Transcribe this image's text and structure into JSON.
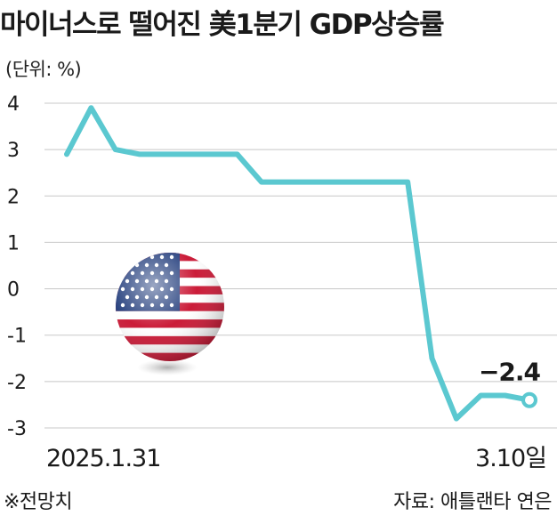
{
  "header": {
    "title": "마이너스로 떨어진 美1분기 GDP상승률",
    "unit_label": "(단위: %)"
  },
  "footer": {
    "note": "※전망치",
    "source": "자료: 애틀랜타 연은"
  },
  "colors": {
    "line": "#5bc8d0",
    "grid": "#c8c8c8",
    "text": "#1a1a1a"
  },
  "decorations": {
    "flag_icon": "us-flag-sphere-icon"
  },
  "chart_data": {
    "type": "line",
    "title": "마이너스로 떨어진 美1분기 GDP상승률",
    "ylabel": "(단위: %)",
    "ylim": [
      -3,
      4
    ],
    "yticks": [
      4,
      3,
      2,
      1,
      0,
      -1,
      -2,
      -3
    ],
    "y_tick_labels": [
      "4",
      "3",
      "2",
      "1",
      "0",
      "-1",
      "-2",
      "-3"
    ],
    "x_tick_labels": [
      "2025.1.31",
      "3.10일"
    ],
    "grid": true,
    "series": [
      {
        "values": [
          2.9,
          3.9,
          3.0,
          2.9,
          2.9,
          2.9,
          2.9,
          2.9,
          2.3,
          2.3,
          2.3,
          2.3,
          2.3,
          2.3,
          2.3,
          -1.5,
          -2.8,
          -2.3,
          -2.3,
          -2.4
        ],
        "end_label": "−2.4"
      }
    ]
  }
}
